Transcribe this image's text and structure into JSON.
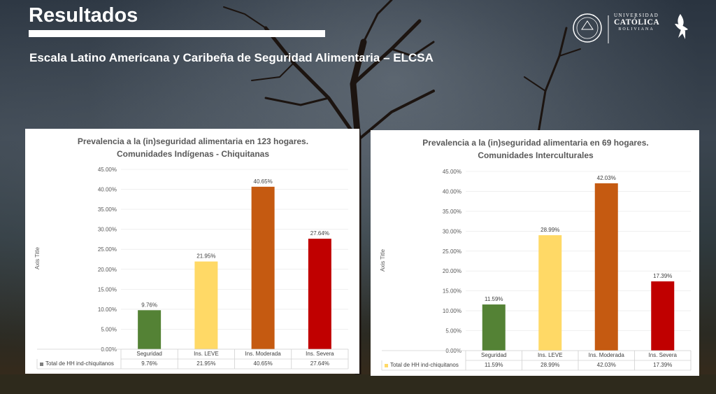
{
  "header": {
    "title": "Resultados",
    "subtitle": "Escala Latino Americana y Caribeña de Seguridad Alimentaria – ELCSA"
  },
  "logo": {
    "line1": "UNIVERSIDAD",
    "line2": "CATÓLICA",
    "line3": "BOLIVIANA"
  },
  "colors": {
    "seguridad": "#548235",
    "leve": "#FFD966",
    "moderada": "#C55A11",
    "severa": "#C00000"
  },
  "chart_data": [
    {
      "type": "bar",
      "title": "Prevalencia a la (in)seguridad alimentaria en 123 hogares.",
      "subtitle": "Comunidades Indígenas - Chiquitanas",
      "ylabel": "Axis Title",
      "ylim": [
        0,
        45
      ],
      "yticks": [
        "0.00%",
        "5.00%",
        "10.00%",
        "15.00%",
        "20.00%",
        "25.00%",
        "30.00%",
        "35.00%",
        "40.00%",
        "45.00%"
      ],
      "categories": [
        "Seguridad",
        "Ins. LEVE",
        "Ins. Moderada",
        "Ins. Severa"
      ],
      "values": [
        9.76,
        21.95,
        40.65,
        27.64
      ],
      "labels": [
        "9.76%",
        "21.95%",
        "40.65%",
        "27.64%"
      ],
      "series_name": "Total de HH ind-chiquitanos",
      "legend_color": "#7F7F7F"
    },
    {
      "type": "bar",
      "title": "Prevalencia a la (in)seguridad alimentaria en 69 hogares.",
      "subtitle": "Comunidades Interculturales",
      "ylabel": "Axis Title",
      "ylim": [
        0,
        45
      ],
      "yticks": [
        "0.00%",
        "5.00%",
        "10.00%",
        "15.00%",
        "20.00%",
        "25.00%",
        "30.00%",
        "35.00%",
        "40.00%",
        "45.00%"
      ],
      "categories": [
        "Seguridad",
        "Ins. LEVE",
        "Ins. Moderada",
        "Ins. Severa"
      ],
      "values": [
        11.59,
        28.99,
        42.03,
        17.39
      ],
      "labels": [
        "11.59%",
        "28.99%",
        "42.03%",
        "17.39%"
      ],
      "series_name": "Total de HH ind-chiquitanos",
      "legend_color": "#FFD966"
    }
  ]
}
